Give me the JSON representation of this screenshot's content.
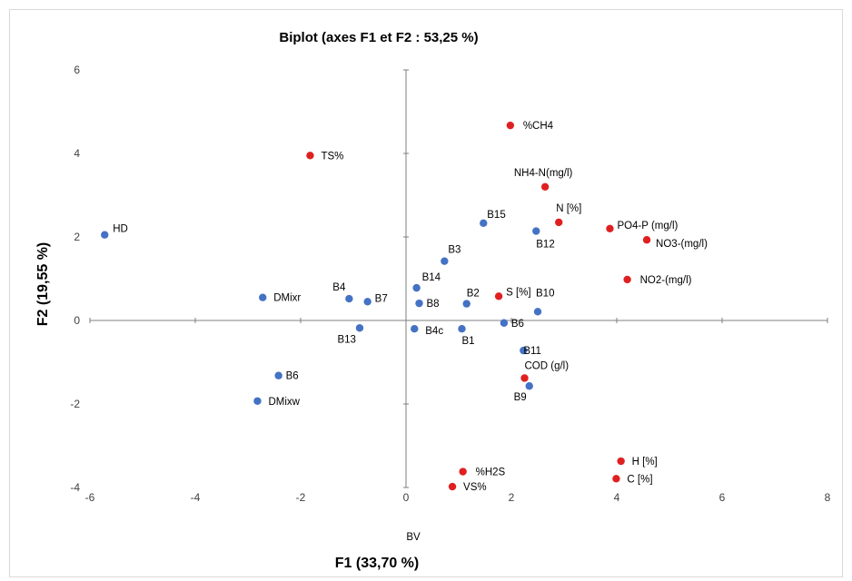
{
  "chart_data": {
    "type": "scatter",
    "title": "Biplot (axes F1 et F2 : 53,25 %)",
    "xlabel": "F1 (33,70 %)",
    "ylabel": "F2 (19,55 %)",
    "xlim": [
      -6,
      8
    ],
    "ylim": [
      -4,
      6
    ],
    "xticks": [
      -6,
      -4,
      -2,
      0,
      2,
      4,
      6,
      8
    ],
    "yticks": [
      -4,
      -2,
      0,
      2,
      4,
      6
    ],
    "grid": false,
    "colors": {
      "observations": "#4472c4",
      "variables": "#e02020",
      "axis": "#7f7f7f"
    },
    "series": [
      {
        "points": [
          {
            "label": "HD",
            "x": -5.72,
            "y": 2.05
          },
          {
            "label": "DMixr",
            "x": -2.72,
            "y": 0.55
          },
          {
            "label": "B4",
            "x": -1.08,
            "y": 0.52
          },
          {
            "label": "B7",
            "x": -0.73,
            "y": 0.45
          },
          {
            "label": "B13",
            "x": -0.88,
            "y": -0.18
          },
          {
            "label": "B6",
            "x": -2.42,
            "y": -1.32
          },
          {
            "label": "DMixw",
            "x": -2.82,
            "y": -1.93
          },
          {
            "label": "B14",
            "x": 0.2,
            "y": 0.78
          },
          {
            "label": "B8",
            "x": 0.25,
            "y": 0.41
          },
          {
            "label": "B3",
            "x": 0.73,
            "y": 1.42
          },
          {
            "label": "B2",
            "x": 1.15,
            "y": 0.4
          },
          {
            "label": "B15",
            "x": 1.47,
            "y": 2.33
          },
          {
            "label": "B4c",
            "x": 0.16,
            "y": -0.2
          },
          {
            "label": "B1",
            "x": 1.06,
            "y": -0.2
          },
          {
            "label": "B6",
            "x": 1.86,
            "y": -0.06
          },
          {
            "label": "B12",
            "x": 2.47,
            "y": 2.14
          },
          {
            "label": "B10",
            "x": 2.5,
            "y": 0.21
          },
          {
            "label": "B11",
            "x": 2.23,
            "y": -0.72
          },
          {
            "label": "B9",
            "x": 2.34,
            "y": -1.57
          },
          {
            "label": "BV",
            "x": null,
            "y": null
          }
        ]
      },
      {
        "points": [
          {
            "label": "TS%",
            "x": -1.82,
            "y": 3.95
          },
          {
            "label": "%CH4",
            "x": 1.98,
            "y": 4.67
          },
          {
            "label": "NH4-N(mg/l)",
            "x": 2.64,
            "y": 3.2
          },
          {
            "label": "N [%]",
            "x": 2.9,
            "y": 2.35
          },
          {
            "label": "PO4-P (mg/l)",
            "x": 3.87,
            "y": 2.2
          },
          {
            "label": "NO3-(mg/l)",
            "x": 4.57,
            "y": 1.93
          },
          {
            "label": "NO2-(mg/l)",
            "x": 4.2,
            "y": 0.98
          },
          {
            "label": "S [%]",
            "x": 1.76,
            "y": 0.58
          },
          {
            "label": "COD (g/l)",
            "x": 2.25,
            "y": -1.38
          },
          {
            "label": "H [%]",
            "x": 4.08,
            "y": -3.37
          },
          {
            "label": "C [%]",
            "x": 3.99,
            "y": -3.79
          },
          {
            "label": "%H2S",
            "x": 1.08,
            "y": -3.62
          },
          {
            "label": "VS%",
            "x": 0.88,
            "y": -3.98
          }
        ]
      }
    ]
  }
}
